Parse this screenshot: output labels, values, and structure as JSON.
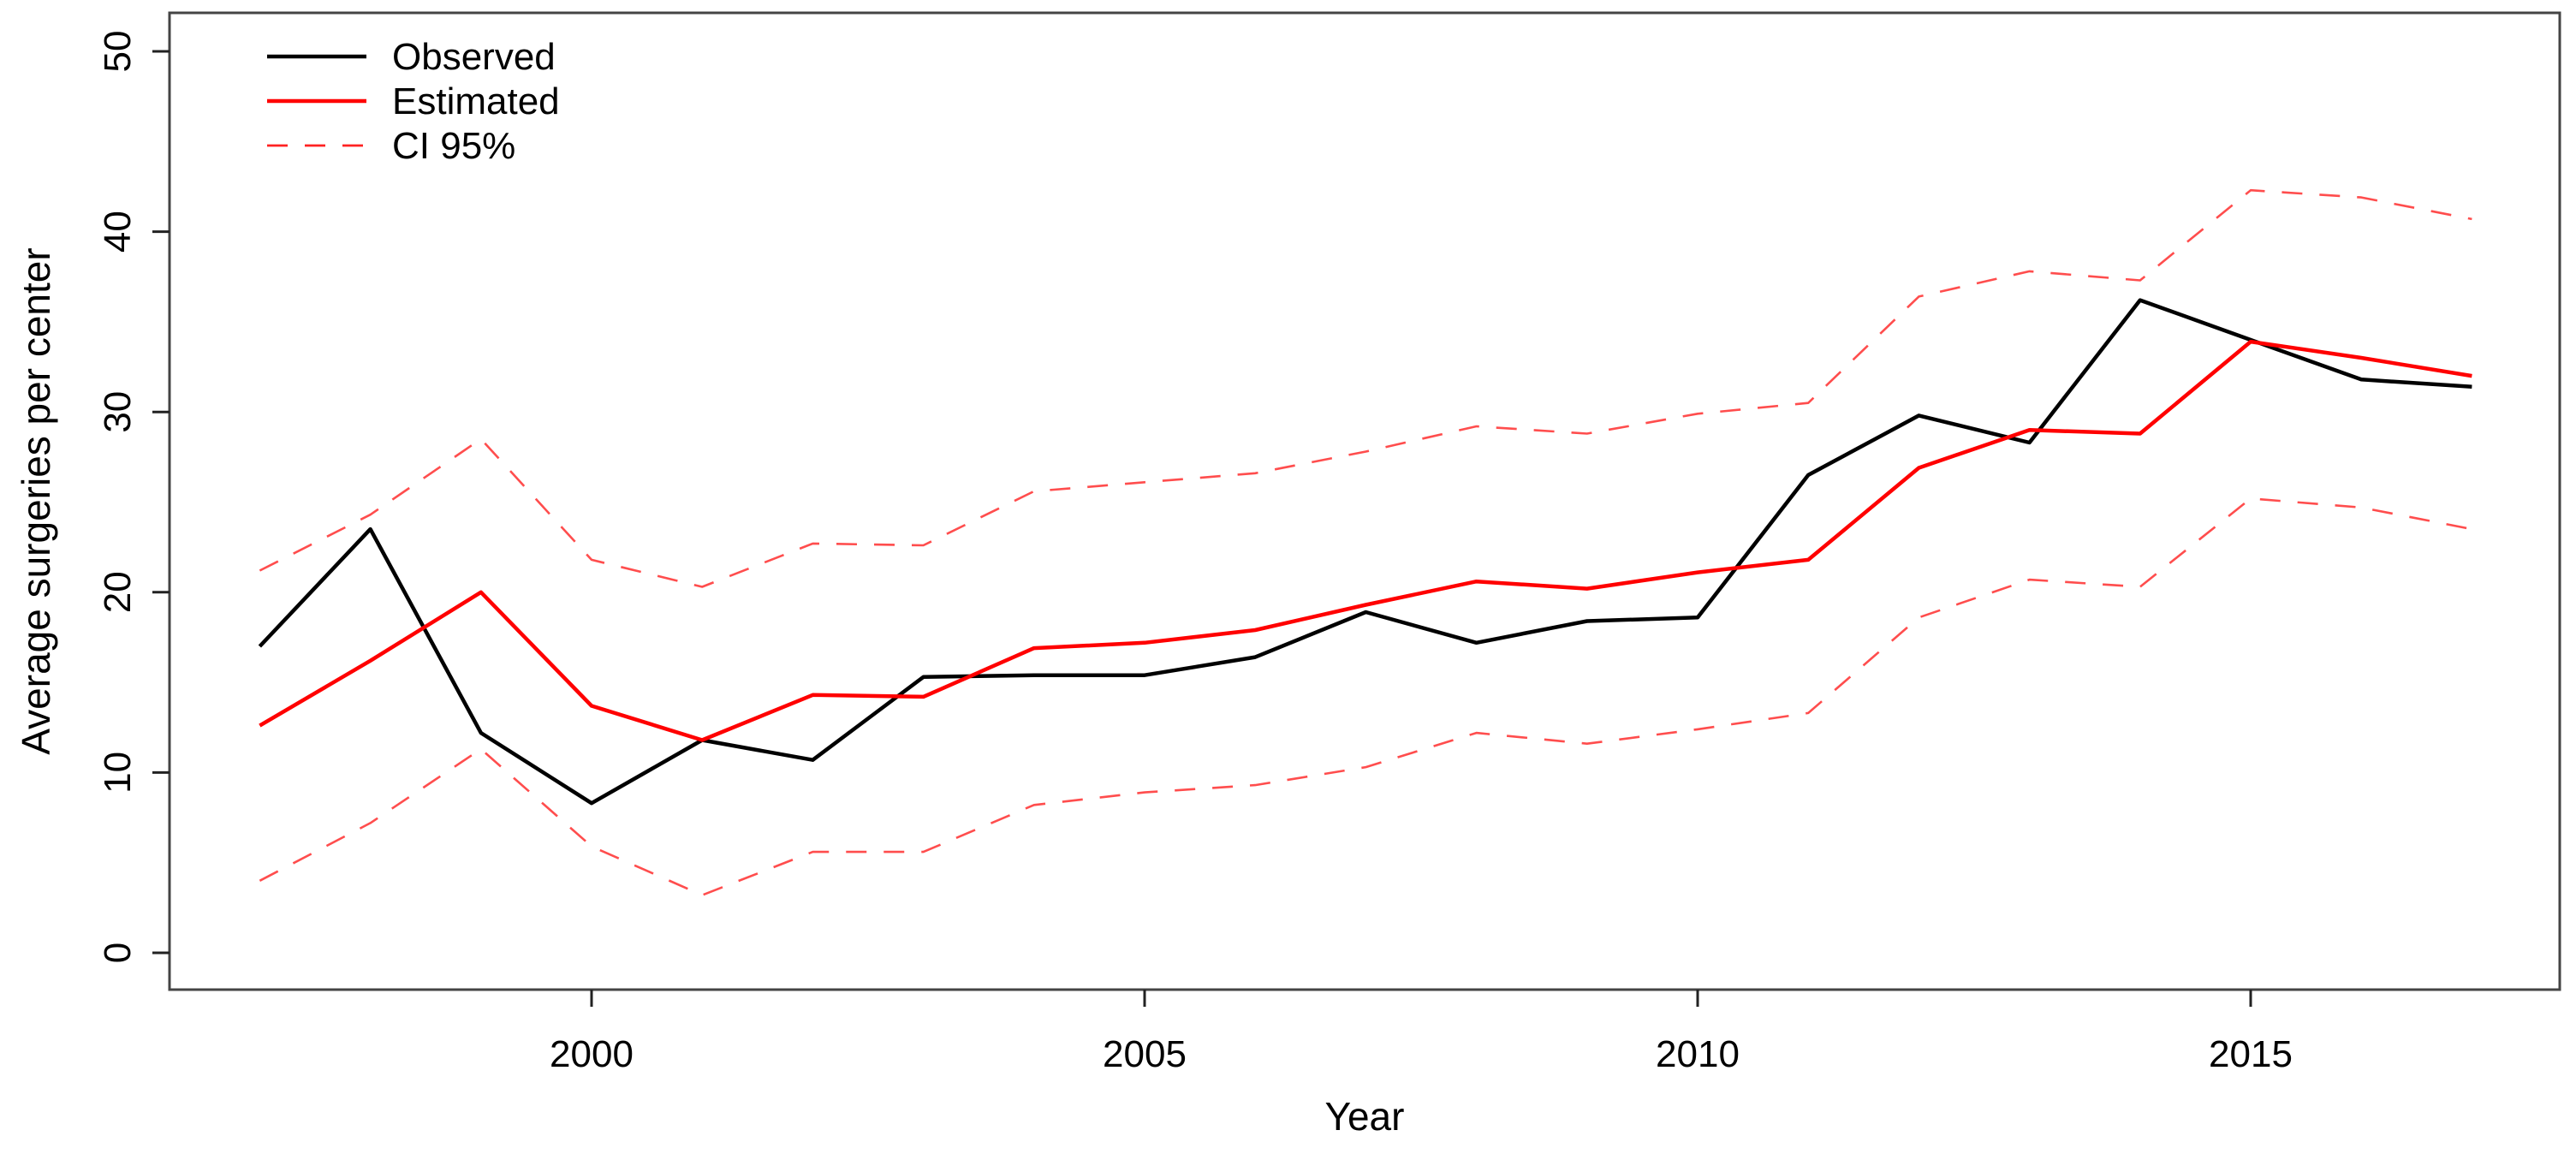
{
  "figure": {
    "background": "#ffffff",
    "xlabel": "Year",
    "ylabel": "Average surgeries per center"
  },
  "legend": {
    "items": [
      {
        "label": "Observed",
        "stroke": "#000000",
        "dashed": false
      },
      {
        "label": "Estimated",
        "stroke": "#ff0000",
        "dashed": false
      },
      {
        "label": "CI 95%",
        "stroke": "#ff2222",
        "dashed": true
      }
    ]
  },
  "colors": {
    "observed": "#000000",
    "estimated": "#ff0000",
    "ci": "#ff4d4d",
    "axis_box": "#444444",
    "tick": "#222222"
  },
  "chart_data": {
    "type": "line",
    "title": "",
    "xlabel": "Year",
    "ylabel": "Average surgeries per center",
    "x": [
      1997,
      1998,
      1999,
      2000,
      2001,
      2002,
      2003,
      2004,
      2005,
      2006,
      2007,
      2008,
      2009,
      2010,
      2011,
      2012,
      2013,
      2014,
      2015,
      2016,
      2017
    ],
    "xticks": [
      2000,
      2005,
      2010,
      2015
    ],
    "yticks": [
      0,
      10,
      20,
      30,
      40,
      50
    ],
    "ylim": [
      0,
      50
    ],
    "xlim": [
      1996.2,
      2017.8
    ],
    "grid": false,
    "legend_position": "top-left",
    "series": [
      {
        "name": "Observed",
        "role": "observed",
        "values": [
          17.0,
          23.5,
          12.2,
          8.3,
          11.8,
          10.7,
          15.3,
          15.4,
          15.4,
          16.4,
          18.9,
          17.2,
          18.4,
          18.6,
          26.5,
          29.8,
          28.3,
          36.2,
          34.0,
          31.8,
          31.4
        ]
      },
      {
        "name": "Estimated",
        "role": "estimated",
        "values": [
          12.6,
          16.2,
          20.0,
          13.7,
          11.8,
          14.3,
          14.2,
          16.9,
          17.2,
          17.9,
          19.3,
          20.6,
          20.2,
          21.1,
          21.8,
          26.9,
          29.0,
          28.8,
          33.9,
          33.0,
          32.0
        ]
      },
      {
        "name": "CI 95% upper",
        "role": "ci",
        "values": [
          21.2,
          24.3,
          28.5,
          21.8,
          20.3,
          22.7,
          22.6,
          25.6,
          26.1,
          26.6,
          27.8,
          29.2,
          28.8,
          29.9,
          30.5,
          36.4,
          37.8,
          37.3,
          42.3,
          41.9,
          40.7
        ]
      },
      {
        "name": "CI 95% lower",
        "role": "ci",
        "values": [
          4.0,
          7.2,
          11.3,
          5.9,
          3.2,
          5.6,
          5.6,
          8.2,
          8.9,
          9.3,
          10.3,
          12.2,
          11.6,
          12.4,
          13.3,
          18.6,
          20.7,
          20.3,
          25.2,
          24.7,
          23.5
        ]
      }
    ]
  }
}
